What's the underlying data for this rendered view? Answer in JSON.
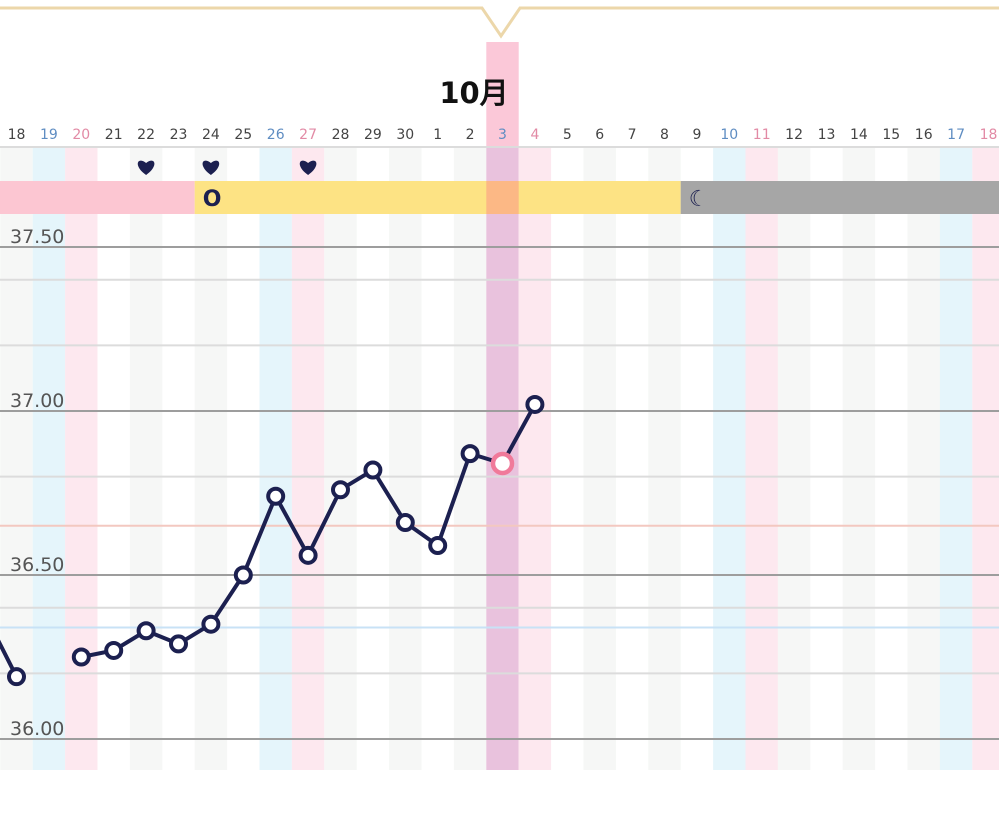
{
  "month_label": "10月",
  "colors": {
    "navy": "#1c2050",
    "selected_point": "#f07a9a",
    "saturday_text": "#5f8dc2",
    "sunday_text": "#e28aa5",
    "weekday_text": "#444444",
    "saturday_column": "#e5f5fb",
    "sunday_column": "#fde8ef",
    "stripe_column": "#f6f7f6",
    "selected_column": "#e9c2dd",
    "selected_day_header": "#fbc8d8",
    "period_band": "#fcc6d2",
    "fertile_band": "#fde384",
    "fertile_selected_band": "#fcb885",
    "luteal_band": "#a6a6a6",
    "grid_major": "#9d9d9d",
    "grid_minor": "#dcdcdc",
    "upper_reference_line": "#f3c8c0",
    "lower_reference_line": "#c8e2f6",
    "popup_border": "#ecd7aa"
  },
  "phase_bands": [
    {
      "phase": "period",
      "from": 0,
      "to": 5,
      "icon": "",
      "icon_name": ""
    },
    {
      "phase": "fertile",
      "from": 6,
      "to": 20,
      "icon": "O",
      "icon_name": "ovulation-icon"
    },
    {
      "phase": "luteal",
      "from": 21,
      "to": 31,
      "icon": "☾",
      "icon_name": "moon-icon"
    }
  ],
  "heart_days": [
    4,
    6,
    9
  ],
  "chart_data": {
    "type": "line",
    "month_start_index": 13,
    "selected_index": 15,
    "days": [
      {
        "label": "18",
        "kind": "weekday"
      },
      {
        "label": "19",
        "kind": "saturday"
      },
      {
        "label": "20",
        "kind": "sunday"
      },
      {
        "label": "21",
        "kind": "weekday"
      },
      {
        "label": "22",
        "kind": "weekday"
      },
      {
        "label": "23",
        "kind": "weekday"
      },
      {
        "label": "24",
        "kind": "weekday"
      },
      {
        "label": "25",
        "kind": "weekday"
      },
      {
        "label": "26",
        "kind": "saturday"
      },
      {
        "label": "27",
        "kind": "sunday"
      },
      {
        "label": "28",
        "kind": "weekday"
      },
      {
        "label": "29",
        "kind": "weekday"
      },
      {
        "label": "30",
        "kind": "weekday"
      },
      {
        "label": "1",
        "kind": "weekday"
      },
      {
        "label": "2",
        "kind": "weekday"
      },
      {
        "label": "3",
        "kind": "saturday"
      },
      {
        "label": "4",
        "kind": "sunday"
      },
      {
        "label": "5",
        "kind": "weekday"
      },
      {
        "label": "6",
        "kind": "weekday"
      },
      {
        "label": "7",
        "kind": "weekday"
      },
      {
        "label": "8",
        "kind": "weekday"
      },
      {
        "label": "9",
        "kind": "weekday"
      },
      {
        "label": "10",
        "kind": "saturday"
      },
      {
        "label": "11",
        "kind": "sunday"
      },
      {
        "label": "12",
        "kind": "weekday"
      },
      {
        "label": "13",
        "kind": "weekday"
      },
      {
        "label": "14",
        "kind": "weekday"
      },
      {
        "label": "15",
        "kind": "weekday"
      },
      {
        "label": "16",
        "kind": "weekday"
      },
      {
        "label": "17",
        "kind": "saturday"
      },
      {
        "label": "18",
        "kind": "sunday"
      }
    ],
    "temperatures": [
      36.19,
      null,
      36.25,
      36.27,
      36.33,
      36.29,
      36.35,
      36.5,
      36.74,
      36.56,
      36.76,
      36.82,
      36.66,
      36.59,
      36.87,
      36.84,
      37.02,
      null,
      null,
      null,
      null,
      null,
      null,
      null,
      null,
      null,
      null,
      null,
      null,
      null,
      null
    ],
    "lead_in_temperature": 36.35,
    "y_ticks": [
      {
        "value": 37.5,
        "label": "37.50"
      },
      {
        "value": 37.0,
        "label": "37.00"
      },
      {
        "value": 36.5,
        "label": "36.50"
      },
      {
        "value": 36.0,
        "label": "36.00"
      }
    ],
    "minor_gridlines": [
      37.4,
      37.2,
      36.8,
      36.4,
      36.2
    ],
    "upper_reference_line": 36.65,
    "lower_reference_line": 36.34,
    "ylim": [
      35.9,
      37.6
    ]
  }
}
